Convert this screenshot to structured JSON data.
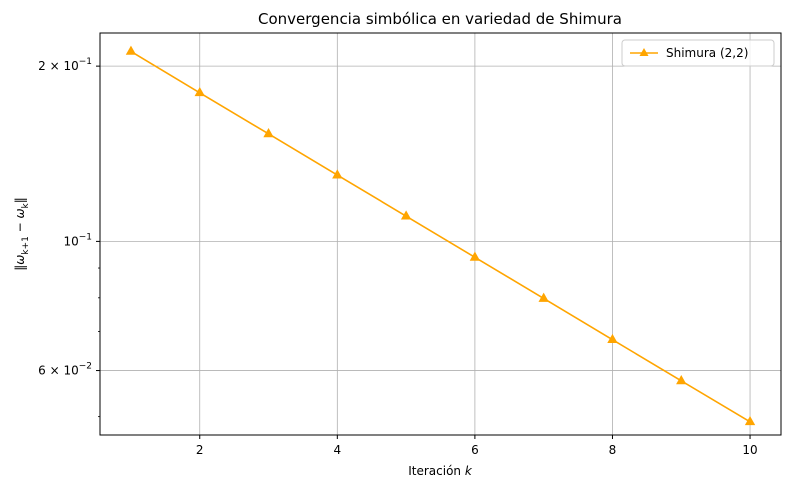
{
  "chart_data": {
    "type": "line",
    "title": "Convergencia simbólica en variedad de Shimura",
    "xlabel_text": "Iteración ",
    "xlabel_var": "k",
    "ylabel": "‖ω_{k+1} − ω_k‖",
    "yscale": "log",
    "xlim": [
      0.55,
      10.45
    ],
    "ylim": [
      0.0465,
      0.228
    ],
    "x_ticks": [
      2,
      4,
      6,
      8,
      10
    ],
    "x_tick_labels": [
      "2",
      "4",
      "6",
      "8",
      "10"
    ],
    "y_major_ticks": [
      0.06,
      0.1,
      0.2
    ],
    "y_tick_labels": [
      {
        "value": 0.2,
        "mantissa": "2 × 10",
        "exp": "−1"
      },
      {
        "value": 0.1,
        "mantissa": "10",
        "exp": "−1"
      },
      {
        "value": 0.06,
        "mantissa": "6 × 10",
        "exp": "−2"
      }
    ],
    "y_minor_ticks": [
      0.05,
      0.07,
      0.08,
      0.09
    ],
    "grid": true,
    "legend_position": "top-right",
    "series": [
      {
        "name": "Shimura (2,2)",
        "color": "#ffa500",
        "marker": "triangle-up",
        "x": [
          1,
          2,
          3,
          4,
          5,
          6,
          7,
          8,
          9,
          10
        ],
        "y": [
          0.212,
          0.18,
          0.153,
          0.13,
          0.1105,
          0.0939,
          0.0798,
          0.0678,
          0.0576,
          0.049
        ]
      }
    ]
  }
}
